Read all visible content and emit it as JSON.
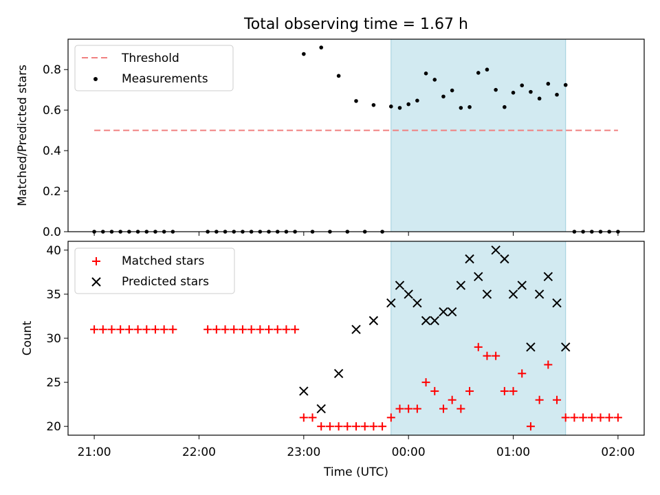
{
  "figure": {
    "title": "Total observing time = 1.67 h",
    "shade_start": "23:50",
    "shade_end": "01:30",
    "shade_color": "#add8e6"
  },
  "chart_data": [
    {
      "type": "scatter",
      "name": "top",
      "title": "Total observing time = 1.67 h",
      "xlabel": "",
      "ylabel": "Matched/Predicted stars",
      "xlim": [
        "20:45",
        "02:15"
      ],
      "ylim": [
        0,
        0.95
      ],
      "yticks": [
        0.0,
        0.2,
        0.4,
        0.6,
        0.8
      ],
      "ytick_labels": [
        "0.0",
        "0.2",
        "0.4",
        "0.6",
        "0.8"
      ],
      "legend_position": "upper-left",
      "threshold": {
        "label": "Threshold",
        "value": 0.5,
        "x_start": "21:00",
        "x_end": "02:00",
        "color": "#f08080"
      },
      "series": [
        {
          "name": "Measurements",
          "marker": "dot",
          "color": "#000000",
          "x": [
            "21:00",
            "21:05",
            "21:10",
            "21:15",
            "21:20",
            "21:25",
            "21:30",
            "21:35",
            "21:40",
            "21:45",
            "22:05",
            "22:10",
            "22:15",
            "22:20",
            "22:25",
            "22:30",
            "22:35",
            "22:40",
            "22:45",
            "22:50",
            "22:55",
            "23:00",
            "23:05",
            "23:10",
            "23:15",
            "23:20",
            "23:25",
            "23:30",
            "23:35",
            "23:40",
            "23:45",
            "23:50",
            "23:55",
            "00:00",
            "00:05",
            "00:10",
            "00:15",
            "00:20",
            "00:25",
            "00:30",
            "00:35",
            "00:40",
            "00:45",
            "00:50",
            "00:55",
            "01:00",
            "01:05",
            "01:10",
            "01:15",
            "01:20",
            "01:25",
            "01:30",
            "01:35",
            "01:40",
            "01:45",
            "01:50",
            "01:55",
            "02:00"
          ],
          "y": [
            0,
            0,
            0,
            0,
            0,
            0,
            0,
            0,
            0,
            0,
            0,
            0,
            0,
            0,
            0,
            0,
            0,
            0,
            0,
            0,
            0,
            0.877,
            0,
            0.909,
            0,
            0.769,
            0,
            0.645,
            0,
            0.625,
            0,
            0.618,
            0.611,
            0.629,
            0.647,
            0.781,
            0.75,
            0.667,
            0.697,
            0.611,
            0.615,
            0.784,
            0.8,
            0.7,
            0.615,
            0.686,
            0.722,
            0.69,
            0.657,
            0.73,
            0.676,
            0.724,
            0,
            0,
            0,
            0,
            0,
            0
          ]
        }
      ]
    },
    {
      "type": "scatter",
      "name": "bottom",
      "xlabel": "Time (UTC)",
      "ylabel": "Count",
      "xlim": [
        "20:45",
        "02:15"
      ],
      "ylim": [
        19.0,
        41.0
      ],
      "yticks": [
        20,
        25,
        30,
        35,
        40
      ],
      "ytick_labels": [
        "20",
        "25",
        "30",
        "35",
        "40"
      ],
      "xticks": [
        "21:00",
        "22:00",
        "23:00",
        "00:00",
        "01:00",
        "02:00"
      ],
      "xtick_labels": [
        "21:00",
        "22:00",
        "23:00",
        "00:00",
        "01:00",
        "02:00"
      ],
      "legend_position": "upper-left",
      "series": [
        {
          "name": "Matched stars",
          "marker": "plus",
          "color": "#ff0000",
          "x": [
            "21:00",
            "21:05",
            "21:10",
            "21:15",
            "21:20",
            "21:25",
            "21:30",
            "21:35",
            "21:40",
            "21:45",
            "22:05",
            "22:10",
            "22:15",
            "22:20",
            "22:25",
            "22:30",
            "22:35",
            "22:40",
            "22:45",
            "22:50",
            "22:55",
            "23:00",
            "23:05",
            "23:10",
            "23:15",
            "23:20",
            "23:25",
            "23:30",
            "23:35",
            "23:40",
            "23:45",
            "23:50",
            "23:55",
            "00:00",
            "00:05",
            "00:10",
            "00:15",
            "00:20",
            "00:25",
            "00:30",
            "00:35",
            "00:40",
            "00:45",
            "00:50",
            "00:55",
            "01:00",
            "01:05",
            "01:10",
            "01:15",
            "01:20",
            "01:25",
            "01:30",
            "01:35",
            "01:40",
            "01:45",
            "01:50",
            "01:55",
            "02:00"
          ],
          "y": [
            31,
            31,
            31,
            31,
            31,
            31,
            31,
            31,
            31,
            31,
            31,
            31,
            31,
            31,
            31,
            31,
            31,
            31,
            31,
            31,
            31,
            21,
            21,
            20,
            20,
            20,
            20,
            20,
            20,
            20,
            20,
            21,
            22,
            22,
            22,
            25,
            24,
            22,
            23,
            22,
            24,
            29,
            28,
            28,
            24,
            24,
            26,
            20,
            23,
            27,
            23,
            21,
            21,
            21,
            21,
            21,
            21,
            21
          ]
        },
        {
          "name": "Predicted stars",
          "marker": "x",
          "color": "#000000",
          "x": [
            "23:00",
            "23:10",
            "23:20",
            "23:30",
            "23:40",
            "23:50",
            "23:55",
            "00:00",
            "00:05",
            "00:10",
            "00:15",
            "00:20",
            "00:25",
            "00:30",
            "00:35",
            "00:40",
            "00:45",
            "00:50",
            "00:55",
            "01:00",
            "01:05",
            "01:10",
            "01:15",
            "01:20",
            "01:25",
            "01:30"
          ],
          "y": [
            24,
            22,
            26,
            31,
            32,
            34,
            36,
            35,
            34,
            32,
            32,
            33,
            33,
            36,
            39,
            37,
            35,
            40,
            39,
            35,
            36,
            29,
            35,
            37,
            34,
            29
          ]
        }
      ]
    }
  ]
}
